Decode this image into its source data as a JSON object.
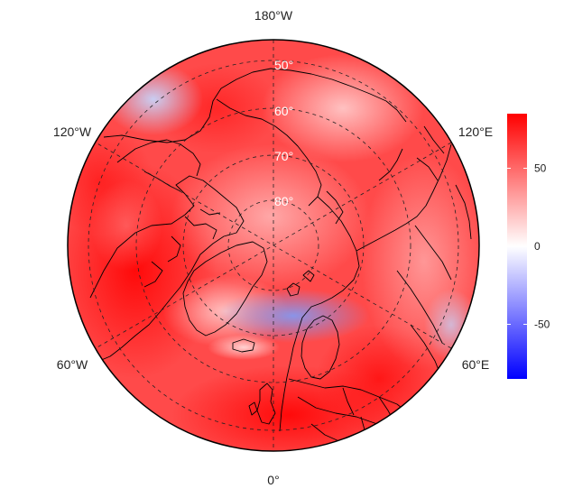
{
  "map": {
    "projection": "north polar stereographic",
    "longitude_labels": {
      "top": "180°W",
      "upper_left": "120°W",
      "upper_right": "120°E",
      "lower_left": "60°W",
      "lower_right": "60°E",
      "bottom": "0°"
    },
    "latitude_labels": [
      "50°",
      "60°",
      "70°",
      "80°"
    ]
  },
  "colorbar": {
    "ticks": [
      "50",
      "0",
      "-50"
    ],
    "tick_values": [
      50,
      0,
      -50
    ],
    "min": -85,
    "max": 85,
    "colors": {
      "high": "#ff0000",
      "mid": "#ffffff",
      "low": "#0000ff"
    }
  }
}
